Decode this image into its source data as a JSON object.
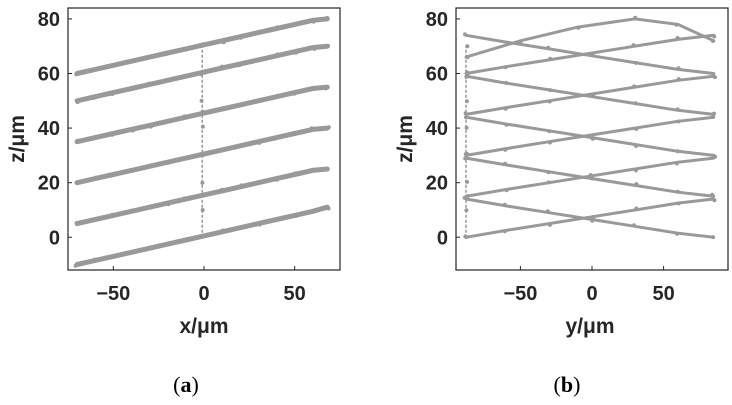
{
  "figure": {
    "caption_a": {
      "open": "(",
      "letter": "a",
      "close": ")"
    },
    "caption_b": {
      "open": "(",
      "letter": "b",
      "close": ")"
    }
  },
  "chart_data": [
    {
      "type": "scatter",
      "panel": "a",
      "xlabel": "x/μm",
      "ylabel": "z/μm",
      "xlim": [
        -75,
        75
      ],
      "ylim": [
        -12,
        84
      ],
      "xticks": [
        -50,
        0,
        50
      ],
      "yticks": [
        0,
        20,
        40,
        60,
        80
      ],
      "grid": false,
      "marker_color": "#999999",
      "series": [
        {
          "points": [
            [
              -70,
              -10
            ],
            [
              -60,
              -8.5
            ],
            [
              -50,
              -7
            ],
            [
              -40,
              -5.5
            ],
            [
              -30,
              -4
            ],
            [
              -20,
              -2.5
            ],
            [
              -10,
              -1
            ],
            [
              0,
              0.5
            ],
            [
              10,
              2
            ],
            [
              20,
              3.5
            ],
            [
              30,
              5
            ],
            [
              40,
              6.5
            ],
            [
              50,
              8
            ],
            [
              60,
              9.5
            ],
            [
              68,
              11
            ]
          ]
        },
        {
          "points": [
            [
              -70,
              5
            ],
            [
              -60,
              6.5
            ],
            [
              -50,
              8
            ],
            [
              -40,
              9.5
            ],
            [
              -30,
              11
            ],
            [
              -20,
              12.5
            ],
            [
              -10,
              14
            ],
            [
              0,
              15.5
            ],
            [
              10,
              17
            ],
            [
              20,
              18.5
            ],
            [
              30,
              20
            ],
            [
              40,
              21.5
            ],
            [
              50,
              23
            ],
            [
              60,
              24.5
            ],
            [
              68,
              25
            ]
          ]
        },
        {
          "points": [
            [
              -70,
              20
            ],
            [
              -60,
              21.5
            ],
            [
              -50,
              23
            ],
            [
              -40,
              24.5
            ],
            [
              -30,
              26
            ],
            [
              -20,
              27.5
            ],
            [
              -10,
              29
            ],
            [
              0,
              30.5
            ],
            [
              10,
              32
            ],
            [
              20,
              33.5
            ],
            [
              30,
              35
            ],
            [
              40,
              36.5
            ],
            [
              50,
              38
            ],
            [
              60,
              39.5
            ],
            [
              68,
              40
            ]
          ]
        },
        {
          "points": [
            [
              -70,
              35
            ],
            [
              -60,
              36.5
            ],
            [
              -50,
              38
            ],
            [
              -40,
              39.5
            ],
            [
              -30,
              41
            ],
            [
              -20,
              42.5
            ],
            [
              -10,
              44
            ],
            [
              0,
              45.5
            ],
            [
              10,
              47
            ],
            [
              20,
              48.5
            ],
            [
              30,
              50
            ],
            [
              40,
              51.5
            ],
            [
              50,
              53
            ],
            [
              60,
              54.5
            ],
            [
              68,
              55
            ]
          ]
        },
        {
          "points": [
            [
              -70,
              50
            ],
            [
              -60,
              51.5
            ],
            [
              -50,
              53
            ],
            [
              -40,
              54.5
            ],
            [
              -30,
              56
            ],
            [
              -20,
              57.5
            ],
            [
              -10,
              59
            ],
            [
              0,
              60.5
            ],
            [
              10,
              62
            ],
            [
              20,
              63.5
            ],
            [
              30,
              65
            ],
            [
              40,
              66.5
            ],
            [
              50,
              68
            ],
            [
              60,
              69.5
            ],
            [
              68,
              70
            ]
          ]
        },
        {
          "points": [
            [
              -70,
              60
            ],
            [
              -60,
              61.5
            ],
            [
              -50,
              63
            ],
            [
              -40,
              64.5
            ],
            [
              -30,
              66
            ],
            [
              -20,
              67.5
            ],
            [
              -10,
              69
            ],
            [
              0,
              70.5
            ],
            [
              10,
              72
            ],
            [
              20,
              73.5
            ],
            [
              30,
              75
            ],
            [
              40,
              76.5
            ],
            [
              50,
              78
            ],
            [
              60,
              79.5
            ],
            [
              68,
              80
            ]
          ]
        },
        {
          "points": [
            [
              -1,
              0
            ],
            [
              -1,
              10
            ],
            [
              -1,
              20
            ],
            [
              -1,
              30
            ],
            [
              -1,
              40
            ],
            [
              -1,
              50
            ],
            [
              -1,
              60
            ],
            [
              -1,
              70
            ]
          ]
        }
      ]
    },
    {
      "type": "scatter",
      "panel": "b",
      "xlabel": "y/μm",
      "ylabel": "z/μm",
      "xlim": [
        -95,
        95
      ],
      "ylim": [
        -12,
        84
      ],
      "xticks": [
        -50,
        0,
        50
      ],
      "yticks": [
        0,
        20,
        40,
        60,
        80
      ],
      "grid": false,
      "marker_color": "#999999",
      "series": [
        {
          "points": [
            [
              -88,
              0
            ],
            [
              -60,
              2.5
            ],
            [
              -30,
              5
            ],
            [
              0,
              7.5
            ],
            [
              30,
              10
            ],
            [
              60,
              12.5
            ],
            [
              85,
              14
            ]
          ]
        },
        {
          "points": [
            [
              -88,
              14
            ],
            [
              -60,
              11.5
            ],
            [
              -30,
              9
            ],
            [
              0,
              6.5
            ],
            [
              30,
              4
            ],
            [
              60,
              1.5
            ],
            [
              85,
              0
            ]
          ]
        },
        {
          "points": [
            [
              -88,
              15
            ],
            [
              -60,
              17.5
            ],
            [
              -30,
              20
            ],
            [
              0,
              22.5
            ],
            [
              30,
              25
            ],
            [
              60,
              27.5
            ],
            [
              85,
              29
            ]
          ]
        },
        {
          "points": [
            [
              -88,
              29
            ],
            [
              -60,
              26.5
            ],
            [
              -30,
              24
            ],
            [
              0,
              21.5
            ],
            [
              30,
              19
            ],
            [
              60,
              16.5
            ],
            [
              85,
              15
            ]
          ]
        },
        {
          "points": [
            [
              -88,
              30
            ],
            [
              -60,
              32.5
            ],
            [
              -30,
              35
            ],
            [
              0,
              37.5
            ],
            [
              30,
              40
            ],
            [
              60,
              42.5
            ],
            [
              85,
              44
            ]
          ]
        },
        {
          "points": [
            [
              -88,
              44
            ],
            [
              -60,
              41.5
            ],
            [
              -30,
              39
            ],
            [
              0,
              36.5
            ],
            [
              30,
              34
            ],
            [
              60,
              31.5
            ],
            [
              85,
              30
            ]
          ]
        },
        {
          "points": [
            [
              -88,
              45
            ],
            [
              -60,
              47.5
            ],
            [
              -30,
              50
            ],
            [
              0,
              52.5
            ],
            [
              30,
              55
            ],
            [
              60,
              57.5
            ],
            [
              85,
              59
            ]
          ]
        },
        {
          "points": [
            [
              -88,
              59
            ],
            [
              -60,
              56.5
            ],
            [
              -30,
              54
            ],
            [
              0,
              51.5
            ],
            [
              30,
              49
            ],
            [
              60,
              46.5
            ],
            [
              85,
              45
            ]
          ]
        },
        {
          "points": [
            [
              -88,
              60
            ],
            [
              -60,
              62.5
            ],
            [
              -30,
              65
            ],
            [
              0,
              67.5
            ],
            [
              30,
              70
            ],
            [
              60,
              72.5
            ],
            [
              85,
              74
            ]
          ]
        },
        {
          "points": [
            [
              -88,
              74
            ],
            [
              -60,
              71.5
            ],
            [
              -30,
              69
            ],
            [
              0,
              66.5
            ],
            [
              30,
              64
            ],
            [
              60,
              61.5
            ],
            [
              85,
              60
            ]
          ]
        },
        {
          "points": [
            [
              -88,
              66
            ],
            [
              -50,
              72
            ],
            [
              -10,
              77
            ],
            [
              30,
              80
            ],
            [
              60,
              78
            ],
            [
              85,
              72
            ]
          ]
        },
        {
          "points": [
            [
              -88,
              0
            ],
            [
              -88,
              10
            ],
            [
              -88,
              20
            ],
            [
              -88,
              30
            ],
            [
              -88,
              40
            ],
            [
              -88,
              50
            ],
            [
              -88,
              60
            ],
            [
              -88,
              70
            ]
          ]
        }
      ]
    }
  ]
}
